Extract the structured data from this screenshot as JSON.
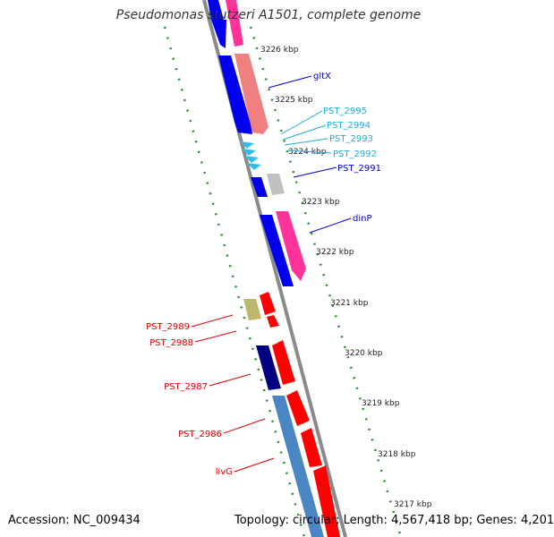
{
  "title": "Pseudomonas stutzeri A1501, complete genome",
  "footer": {
    "accession_label": "Accession:",
    "accession": "NC_009434",
    "topology_label": "Topology:",
    "topology": "circular;",
    "length_label": "Length:",
    "length": "4,567,418 bp;",
    "genes_label": "Genes:",
    "genes": "4,201"
  },
  "colors": {
    "backbone": "#8a8a8a",
    "tick_green": "#2e8b2e",
    "blue": "#0000ee",
    "pink": "#ff3399",
    "salmon": "#f08080",
    "red": "#ff0000",
    "navy": "#000080",
    "steelblue": "#4a86c4",
    "khaki": "#bdb76b",
    "gray": "#c0c0c0",
    "cyan": "#33bbee",
    "label_dark_blue": "#0000cc",
    "label_cyan": "#22aadd",
    "label_red": "#dd0000"
  },
  "kbp_ticks": [
    "3226 kbp",
    "3225 kbp",
    "3224 kbp",
    "3223 kbp",
    "3222 kbp",
    "3221 kbp",
    "3220 kbp",
    "3219 kbp",
    "3218 kbp",
    "3217 kbp"
  ],
  "gene_labels": [
    {
      "text": "gltX",
      "color": "label_dark_blue"
    },
    {
      "text": "PST_2995",
      "color": "label_cyan"
    },
    {
      "text": "PST_2994",
      "color": "label_cyan"
    },
    {
      "text": "PST_2993",
      "color": "label_cyan"
    },
    {
      "text": "PST_2992",
      "color": "label_cyan"
    },
    {
      "text": "PST_2991",
      "color": "label_dark_blue"
    },
    {
      "text": "dinP",
      "color": "label_dark_blue"
    },
    {
      "text": "PST_2989",
      "color": "label_red"
    },
    {
      "text": "PST_2988",
      "color": "label_red"
    },
    {
      "text": "PST_2987",
      "color": "label_red"
    },
    {
      "text": "PST_2986",
      "color": "label_red"
    },
    {
      "text": "livG",
      "color": "label_red"
    }
  ]
}
